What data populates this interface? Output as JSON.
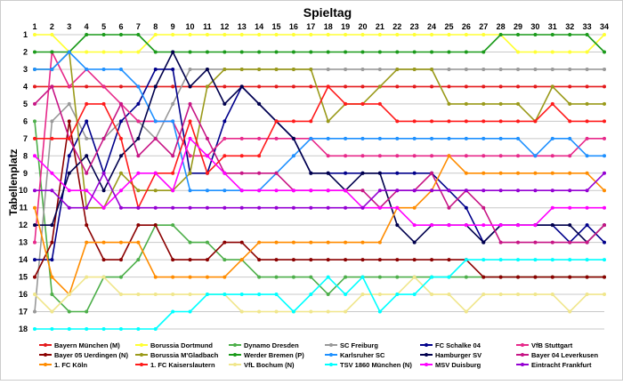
{
  "chart_data": {
    "type": "line",
    "title": "Spieltag",
    "ylabel": "Tabellenplatz",
    "x": [
      1,
      2,
      3,
      4,
      5,
      6,
      7,
      8,
      9,
      10,
      11,
      12,
      13,
      14,
      15,
      16,
      17,
      18,
      19,
      20,
      21,
      22,
      23,
      24,
      25,
      26,
      27,
      28,
      29,
      30,
      31,
      32,
      33,
      34
    ],
    "y_ticks": [
      1,
      2,
      3,
      4,
      5,
      6,
      7,
      8,
      9,
      10,
      11,
      12,
      13,
      14,
      15,
      16,
      17,
      18
    ],
    "ylim": [
      18,
      1
    ],
    "grid": true,
    "legend_position": "bottom",
    "series": [
      {
        "name": "Bayern München (M)",
        "color": "#e41a1c",
        "values": [
          4,
          4,
          4,
          4,
          4,
          4,
          4,
          4,
          4,
          4,
          4,
          4,
          4,
          4,
          4,
          4,
          4,
          4,
          4,
          4,
          4,
          4,
          4,
          4,
          4,
          4,
          4,
          4,
          4,
          4,
          4,
          4,
          4,
          4
        ]
      },
      {
        "name": "Borussia Dortmund",
        "color": "#ffff33",
        "values": [
          1,
          1,
          2,
          2,
          2,
          2,
          2,
          1,
          1,
          1,
          1,
          1,
          1,
          1,
          1,
          1,
          1,
          1,
          1,
          1,
          1,
          1,
          1,
          1,
          1,
          1,
          1,
          1,
          2,
          2,
          2,
          2,
          2,
          1
        ]
      },
      {
        "name": "Dynamo Dresden",
        "color": "#4daf4a",
        "values": [
          6,
          16,
          17,
          17,
          15,
          15,
          14,
          12,
          12,
          13,
          13,
          14,
          14,
          15,
          15,
          15,
          15,
          16,
          15,
          15,
          15,
          15,
          15,
          15,
          15,
          15,
          15,
          15,
          15,
          15,
          15,
          15,
          15,
          15
        ]
      },
      {
        "name": "SC Freiburg",
        "color": "#999999",
        "values": [
          17,
          6,
          5,
          7,
          7,
          6,
          6,
          7,
          5,
          3,
          3,
          3,
          3,
          3,
          3,
          3,
          3,
          3,
          3,
          3,
          3,
          3,
          3,
          3,
          3,
          3,
          3,
          3,
          3,
          3,
          3,
          3,
          3,
          3
        ]
      },
      {
        "name": "FC Schalke 04",
        "color": "#00008b",
        "values": [
          14,
          14,
          8,
          6,
          9,
          6,
          5,
          3,
          3,
          9,
          9,
          6,
          4,
          5,
          6,
          7,
          9,
          9,
          9,
          9,
          9,
          9,
          9,
          9,
          10,
          11,
          13,
          12,
          12,
          12,
          12,
          13,
          12,
          13
        ]
      },
      {
        "name": "VfB Stuttgart",
        "color": "#e7298a",
        "values": [
          13,
          2,
          4,
          3,
          4,
          5,
          6,
          6,
          6,
          8,
          8,
          7,
          7,
          7,
          7,
          7,
          7,
          8,
          8,
          8,
          8,
          8,
          8,
          8,
          8,
          8,
          8,
          8,
          8,
          8,
          8,
          8,
          7,
          7
        ]
      },
      {
        "name": "Bayer 05 Uerdingen (N)",
        "color": "#8b0000",
        "values": [
          15,
          13,
          6,
          12,
          14,
          14,
          12,
          12,
          14,
          14,
          14,
          13,
          13,
          14,
          14,
          14,
          14,
          14,
          14,
          14,
          14,
          14,
          14,
          14,
          14,
          14,
          15,
          15,
          15,
          15,
          15,
          15,
          15,
          15
        ]
      },
      {
        "name": "Borussia M'Gladbach",
        "color": "#9a9a1a",
        "values": [
          3,
          3,
          2,
          11,
          11,
          9,
          10,
          10,
          10,
          9,
          4,
          3,
          3,
          3,
          3,
          3,
          3,
          6,
          5,
          5,
          4,
          3,
          3,
          3,
          5,
          5,
          5,
          5,
          5,
          6,
          4,
          5,
          5,
          5
        ]
      },
      {
        "name": "Werder Bremen (P)",
        "color": "#1a9a1a",
        "values": [
          2,
          2,
          2,
          1,
          1,
          1,
          1,
          2,
          2,
          2,
          2,
          2,
          2,
          2,
          2,
          2,
          2,
          2,
          2,
          2,
          2,
          2,
          2,
          2,
          2,
          2,
          2,
          1,
          1,
          1,
          1,
          1,
          1,
          2
        ]
      },
      {
        "name": "Karlsruher SC",
        "color": "#1e90ff",
        "values": [
          3,
          3,
          2,
          3,
          3,
          3,
          4,
          6,
          6,
          10,
          10,
          10,
          10,
          10,
          9,
          8,
          7,
          7,
          7,
          7,
          7,
          7,
          7,
          7,
          7,
          7,
          7,
          7,
          7,
          8,
          7,
          7,
          8,
          8
        ]
      },
      {
        "name": "Hamburger SV",
        "color": "#00004d",
        "values": [
          12,
          12,
          9,
          8,
          10,
          8,
          7,
          4,
          2,
          4,
          3,
          5,
          4,
          5,
          6,
          7,
          9,
          9,
          10,
          9,
          9,
          12,
          13,
          12,
          12,
          12,
          13,
          12,
          12,
          12,
          12,
          12,
          13,
          12
        ]
      },
      {
        "name": "Bayer 04 Leverkusen",
        "color": "#c71585",
        "values": [
          5,
          4,
          7,
          9,
          7,
          5,
          8,
          7,
          8,
          5,
          7,
          9,
          9,
          9,
          9,
          10,
          10,
          10,
          10,
          10,
          11,
          10,
          10,
          9,
          11,
          10,
          11,
          13,
          13,
          13,
          13,
          13,
          13,
          12
        ]
      },
      {
        "name": "1. FC Köln",
        "color": "#ff8c00",
        "values": [
          11,
          15,
          16,
          13,
          13,
          13,
          13,
          15,
          15,
          15,
          15,
          15,
          14,
          13,
          13,
          13,
          13,
          13,
          13,
          13,
          13,
          11,
          11,
          10,
          8,
          9,
          9,
          9,
          9,
          9,
          9,
          9,
          9,
          10
        ]
      },
      {
        "name": "1. FC Kaiserslautern",
        "color": "#ff1a1a",
        "values": [
          7,
          7,
          7,
          5,
          5,
          7,
          11,
          9,
          9,
          6,
          9,
          8,
          8,
          8,
          6,
          6,
          6,
          4,
          5,
          5,
          5,
          6,
          6,
          6,
          6,
          6,
          6,
          6,
          6,
          6,
          5,
          6,
          6,
          6
        ]
      },
      {
        "name": "VfL Bochum (N)",
        "color": "#f0e68c",
        "values": [
          16,
          17,
          16,
          15,
          15,
          16,
          16,
          16,
          16,
          16,
          16,
          16,
          17,
          17,
          17,
          17,
          17,
          17,
          17,
          16,
          16,
          16,
          15,
          16,
          16,
          17,
          16,
          16,
          16,
          16,
          16,
          17,
          16,
          16
        ]
      },
      {
        "name": "TSV 1860 München (N)",
        "color": "#00ffff",
        "values": [
          18,
          18,
          18,
          18,
          18,
          18,
          18,
          18,
          17,
          17,
          16,
          16,
          16,
          16,
          16,
          17,
          16,
          15,
          16,
          15,
          17,
          16,
          16,
          15,
          15,
          14,
          14,
          14,
          14,
          14,
          14,
          14,
          14,
          14
        ]
      },
      {
        "name": "MSV Duisburg",
        "color": "#ff00ff",
        "values": [
          8,
          9,
          10,
          10,
          11,
          10,
          9,
          9,
          10,
          7,
          8,
          9,
          10,
          10,
          10,
          10,
          10,
          10,
          10,
          11,
          11,
          11,
          12,
          12,
          12,
          12,
          12,
          12,
          12,
          12,
          11,
          11,
          11,
          11
        ]
      },
      {
        "name": "Eintracht Frankfurt",
        "color": "#9400d3",
        "values": [
          10,
          10,
          11,
          11,
          9,
          11,
          11,
          11,
          11,
          11,
          11,
          11,
          11,
          11,
          11,
          11,
          11,
          11,
          11,
          11,
          10,
          10,
          10,
          10,
          10,
          10,
          10,
          10,
          10,
          10,
          10,
          10,
          10,
          9
        ]
      }
    ]
  }
}
